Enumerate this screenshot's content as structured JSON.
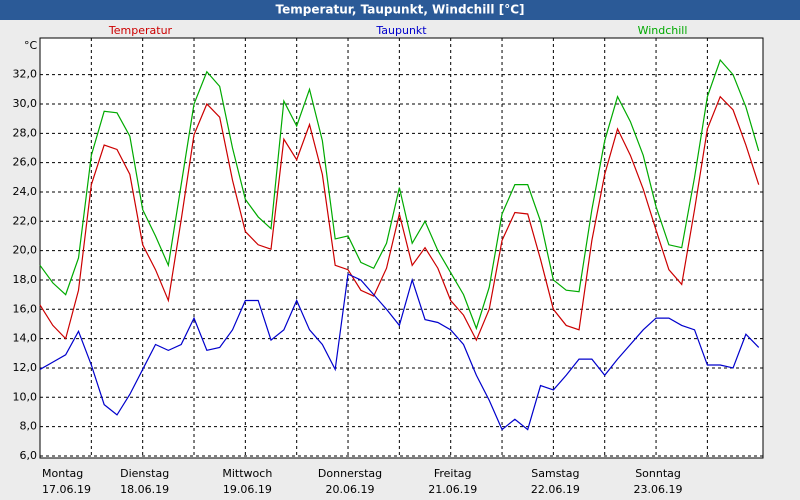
{
  "chart_data": {
    "type": "line",
    "title": "Temperatur, Taupunkt, Windchill [°C]",
    "y_unit": "°C",
    "x": [
      0,
      3,
      6,
      9,
      12,
      15,
      18,
      21,
      24,
      27,
      30,
      33,
      36,
      39,
      42,
      45,
      48,
      51,
      54,
      57,
      60,
      63,
      66,
      69,
      72,
      75,
      78,
      81,
      84,
      87,
      90,
      93,
      96,
      99,
      102,
      105,
      108,
      111,
      114,
      117,
      120,
      123,
      126,
      129,
      132,
      135,
      138,
      141,
      144,
      147,
      150,
      153,
      156,
      159,
      162,
      165,
      168
    ],
    "series": [
      {
        "name": "Temperatur",
        "color": "#cc0000",
        "values": [
          16.3,
          14.9,
          14.0,
          17.3,
          24.5,
          27.2,
          26.9,
          25.2,
          20.4,
          18.7,
          16.6,
          22.1,
          27.9,
          30.0,
          29.1,
          24.8,
          21.3,
          20.4,
          20.1,
          27.6,
          26.2,
          28.6,
          25.2,
          19.0,
          18.7,
          17.3,
          16.9,
          18.8,
          22.5,
          19.0,
          20.2,
          18.8,
          16.6,
          15.6,
          13.9,
          16.0,
          20.7,
          22.6,
          22.5,
          19.4,
          16.0,
          14.9,
          14.6,
          20.7,
          25.2,
          28.3,
          26.5,
          24.2,
          21.4,
          18.7,
          17.7,
          22.8,
          28.3,
          30.5,
          29.6,
          27.2,
          24.5
        ]
      },
      {
        "name": "Taupunkt",
        "color": "#0000cc",
        "values": [
          11.9,
          12.4,
          12.9,
          14.5,
          12.2,
          9.5,
          8.8,
          10.2,
          11.9,
          13.6,
          13.2,
          13.6,
          15.4,
          13.2,
          13.4,
          14.6,
          16.6,
          16.6,
          13.9,
          14.6,
          16.6,
          14.6,
          13.6,
          11.9,
          18.4,
          18.0,
          17.0,
          16.0,
          14.9,
          18.0,
          15.3,
          15.1,
          14.6,
          13.6,
          11.5,
          9.8,
          7.8,
          8.5,
          7.8,
          10.8,
          10.5,
          11.5,
          12.6,
          12.6,
          11.5,
          12.6,
          13.6,
          14.6,
          15.4,
          15.4,
          14.9,
          14.6,
          12.2,
          12.2,
          12.0,
          14.3,
          13.4
        ]
      },
      {
        "name": "Windchill",
        "color": "#00aa00",
        "values": [
          19.0,
          17.8,
          17.0,
          19.5,
          26.5,
          29.5,
          29.4,
          27.8,
          22.8,
          21.0,
          19.0,
          24.5,
          30.0,
          32.2,
          31.2,
          27.0,
          23.5,
          22.3,
          21.5,
          30.2,
          28.5,
          31.0,
          27.5,
          20.8,
          21.0,
          19.2,
          18.8,
          20.5,
          24.3,
          20.5,
          22.0,
          20.0,
          18.5,
          17.0,
          14.7,
          17.5,
          22.5,
          24.5,
          24.5,
          22.0,
          18.0,
          17.3,
          17.2,
          22.8,
          27.5,
          30.5,
          28.8,
          26.5,
          23.0,
          20.4,
          20.2,
          25.0,
          30.5,
          33.0,
          32.0,
          29.8,
          26.8
        ]
      }
    ],
    "xlim": [
      0,
      169
    ],
    "xticks": [
      {
        "value": 0,
        "label": "Montag"
      },
      {
        "value": 24,
        "label": "Dienstag"
      },
      {
        "value": 48,
        "label": "Mittwoch"
      },
      {
        "value": 72,
        "label": "Donnerstag"
      },
      {
        "value": 96,
        "label": "Freitag"
      },
      {
        "value": 120,
        "label": "Samstag"
      },
      {
        "value": 144,
        "label": "Sonntag"
      }
    ],
    "xtick_dates": [
      "17.06.19",
      "18.06.19",
      "19.06.19",
      "20.06.19",
      "21.06.19",
      "22.06.19",
      "23.06.19"
    ],
    "xminorticks": [
      12,
      36,
      60,
      84,
      108,
      132,
      156
    ],
    "ylim": [
      5.86,
      34.5
    ],
    "yticks": [
      {
        "value": 6,
        "label": "6,0"
      },
      {
        "value": 8,
        "label": "8,0"
      },
      {
        "value": 10,
        "label": "10,0"
      },
      {
        "value": 12,
        "label": "12,0"
      },
      {
        "value": 14,
        "label": "14,0"
      },
      {
        "value": 16,
        "label": "16,0"
      },
      {
        "value": 18,
        "label": "18,0"
      },
      {
        "value": 20,
        "label": "20,0"
      },
      {
        "value": 22,
        "label": "22,0"
      },
      {
        "value": 24,
        "label": "24,0"
      },
      {
        "value": 26,
        "label": "26,0"
      },
      {
        "value": 28,
        "label": "28,0"
      },
      {
        "value": 30,
        "label": "30,0"
      },
      {
        "value": 32,
        "label": "32,0"
      }
    ],
    "grid": true
  }
}
